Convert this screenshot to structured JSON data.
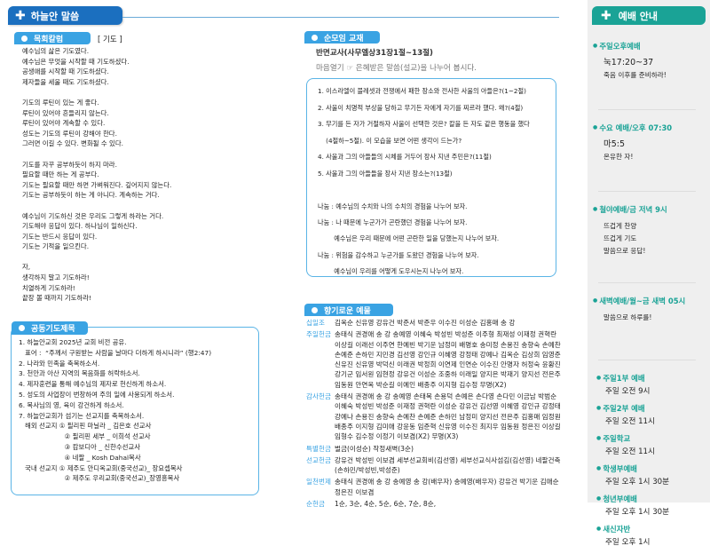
{
  "header": {
    "title": "하늘안 말씀",
    "icon": "plus-icon"
  },
  "column": {
    "label": "목회칼럼",
    "subject": "[ 기도 ]",
    "text": "예수님의 삶은 기도였다.\n예수님은 무엇을 시작할 때 기도하셨다.\n공생애를 시작할 때 기도하셨다.\n제자들을 세울 때도 기도하셨다.\n\n기도의 루틴이 있는 게 좋다.\n루틴이 있어야 흔들리지 않는다.\n루틴이 있어야 계속할 수 있다.\n성도는 기도의 루틴이 강해야 한다.\n그러면 이길 수 있다. 변화될 수 있다.\n\n기도를 자꾸 공부하듯이 하지 마라.\n필요할 때만 하는 게 공부다.\n기도는 필요할 때만 하면 가벼워진다. 깊어지지 않는다.\n기도는 공부하듯이 하는 게 아니다. 계속하는 거다.\n\n예수님이 기도하신 것은 우리도 그렇게 하라는 거다.\n기도해야 응답이 있다. 하나님이 일하신다.\n기도는 반드시 응답이 있다.\n기도는 기적을 일으킨다.\n\n자,\n생각하지 말고 기도하라!\n치열하게 기도하라!\n끝장 볼 때까지 기도하라!"
  },
  "prayer": {
    "label": "공동기도제목",
    "items": [
      "1. 하늘안교회 2025년 교회 비전 공유.",
      "   표어 :  “주께서 구원받는 사람을 날마다 더하게 하시니라” (행2:47)",
      "2. 나라와 민족을 축복하소서.",
      "3. 천안과 아산 지역의 복음화를 허락하소서.",
      "4. 제자훈련을 통해 예수님의 제자로 헌신하게 하소서.",
      "5. 성도의 사업장이 번창하여 주의 일에 사용되게 하소서.",
      "6. 목사님의 영, 육이 강건하게 하소서.",
      "7. 하늘안교회가 섬기는 선교지를 축복하소서.",
      "   해외 선교지 ① 필리핀 마닐라 _ 김은호 선교사",
      "                      ② 필리핀 세부 _ 이희석 선교사",
      "                      ③ 캄보디아 _ 신한수선교사",
      "                      ④ 네팔 _ Kosh Dahal목사",
      "   국내 선교지 ① 제주도 안디옥교회(중국선교)_ 장요셉목사",
      "                      ② 제주도 우리교회(중국선교)_장영흥목사"
    ]
  },
  "cell": {
    "label": "순모임 교재",
    "title": "반면교사(사무엘상31장1절~13절)",
    "intro": "마음열기 ☞ 은혜받은 말씀(설교)을 나누어 봅시다.",
    "questions": [
      "1. 이스라엘이 블레셋과 전쟁에서 패한 장소와 전사한 사울의 아들은?(1~2절)",
      "2. 사울이 치명적 부상을 당하고 무기든 자에게 자기를 찌르라 했다. 왜?(4절)",
      "3. 무기를 든 자가 거절하자 사울이 선택한 것은? 칼을 든 자도 같은 행동을 했다",
      "    (4절하~5절). 이 모습을 보면 어떤 생각이 드는가?",
      "4. 사울과 그의 아들들의 시체를 거두어 장사 지낸 주민은?(11절)",
      "5. 사울과 그의 아들들을 장사 지낸 장소는?(13절)"
    ],
    "sharing": [
      "나눔 : 예수님의 수치와 나의 수치의 경험을 나누어 보자.",
      "나눔 : 나 때문에 누군가가 곤란했던 경험을 나누어 보자.",
      "        예수님은 우리 때문에 어떤 곤란한 일을 당했는지 나누어 보자.",
      "나눔 : 위험을 감수하고 누군가를 도왔던 경험을 나누어 보자.",
      "        예수님이 우리를 어떻게 도우시는지 나누어 보자."
    ]
  },
  "offering": {
    "label": "향기로운 예물",
    "rows": [
      {
        "label": "십일조",
        "names": "김옥순 신유영 강유건 박준서 박준우 이수진 이성순 김홍매 송  강"
      },
      {
        "label": "주일헌금",
        "names": "송태식 권경애 송  강 송예영 이혜숙 박성빈 박성준 이주형 최재성 이재정 권혁란 이상길 이래선 이주연 한예빈 박기운 남정미 배명호 송미정 손용진 송향숙 손예찬 손예준 손하민 지민경 김선영 강인규 이혜영 강정태 강예나 김옥순 김상희 임영준 신유진 신유영 박덕신 이래권 박정희 이연제 인연순 이수진 안명자 허정숙 윤황진 강기군 임서원 임현정 강유건 이성순 조중하 이래일 양지은 박재기 양지선 전은주 임동원 안연옥 박순길 이예인 배종주 이지형 김수정 무명(X2)"
      },
      {
        "label": "감사헌금",
        "names": "송태식 권경애 송  강 송예영 손태복 손용덕 손예은 손다영 손다민 이금남 박범순 이혜숙 박성빈 박성준 이재정 권혁란 이성순 강유건 김선영 이혜영 강인규 강정태 강예나 손용진 송향숙 손예찬 손예준 손하민 남정미 양지선 전은주 김홍매 임정원 배종주 이지형 김미애 강윤동 임준혁 신유영 이수진 최지우 임동원 정은진 이상길 임형수 김수정 이정기 이보겸(X2) 무명(X3)"
      },
      {
        "label": "특별헌금",
        "names": "벌금(이성순) 작정새벽(3순)"
      },
      {
        "label": "선교헌금",
        "names": "강유건 박성빈 이보겸 세부선교회비(김선영) 세부선교식사섬김(김선영) 네팔건축(손하민/박성빈,박성준)"
      },
      {
        "label": "일천번제",
        "names": "송태식 권경애 송  강 송예영 송 강(배우자) 송예영(배우자) 강유건 박기운 김애순 정은진 이보겸"
      },
      {
        "label": "순헌금",
        "names": "1순, 3순, 4순, 5순, 6순, 7순, 8순,"
      }
    ]
  },
  "sidebar": {
    "title": "예배 안내",
    "groups": [
      {
        "title": "주일오후예배",
        "lines": [
          "눅17:20~37",
          "죽음 이후를 준비하라!"
        ]
      },
      {
        "title": "수요 예배/오후 07:30",
        "lines": [
          "마5:5",
          "온유한 자!"
        ]
      },
      {
        "title": "철야예배/금 저녁 9시",
        "lines": [
          "뜨겁게 찬양",
          "뜨겁게 기도",
          "말씀으로 응답!"
        ]
      },
      {
        "title": "새벽예배/월~금 새벽 05시",
        "lines": [
          "말씀으로 하루를!"
        ]
      }
    ],
    "schedule": [
      {
        "title": "주일1부 예배",
        "time": "주일 오전 9시"
      },
      {
        "title": "주일2부 예배",
        "time": "주일 오전 11시"
      },
      {
        "title": "주일학교",
        "time": "주일 오전 11시"
      },
      {
        "title": "학생부예배",
        "time": "주일 오후 1시 30분"
      },
      {
        "title": "청년부예배",
        "time": "주일 오후 1시 30분"
      },
      {
        "title": "새신자반",
        "time": "주일 오후 1시"
      }
    ]
  },
  "colors": {
    "header": "#1b6fbf",
    "pill": "#3aa3e3",
    "sidebar_accent": "#1aa396"
  }
}
